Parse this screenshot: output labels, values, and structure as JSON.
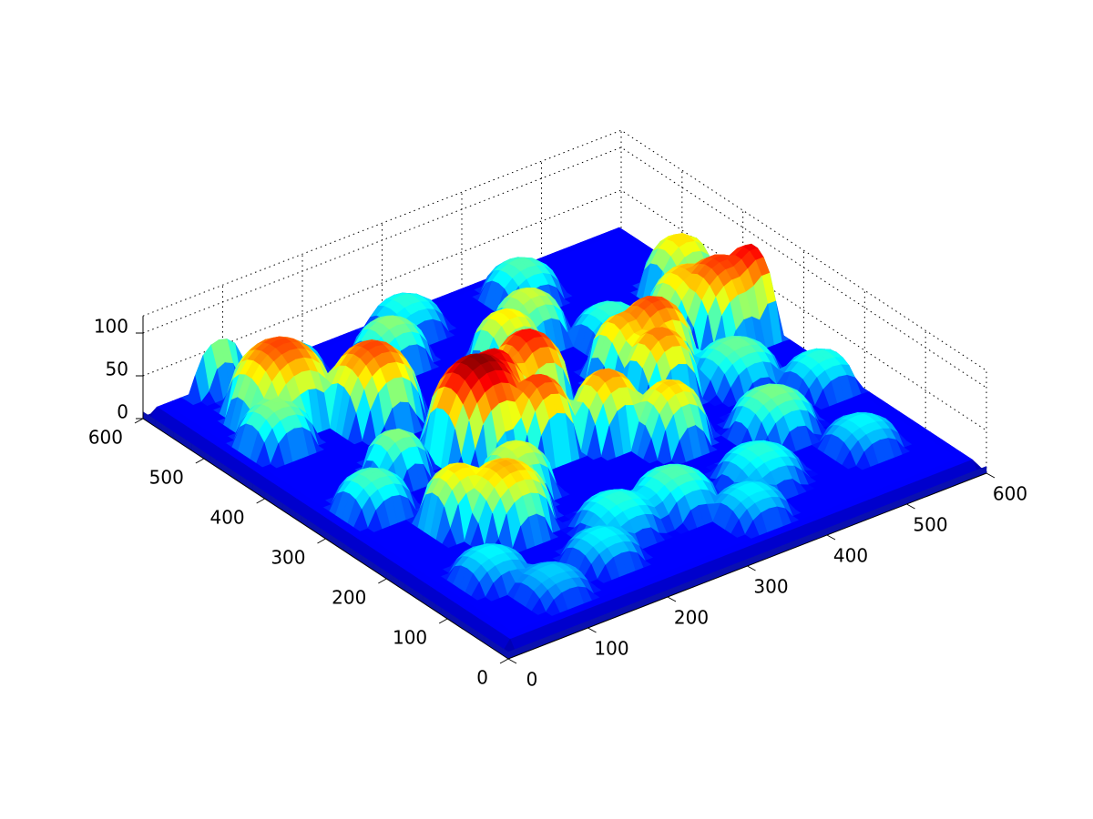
{
  "chart_data": {
    "type": "surface3d",
    "title": "",
    "xlabel": "",
    "ylabel": "",
    "zlabel": "",
    "xlim": [
      0,
      600
    ],
    "ylim": [
      0,
      600
    ],
    "zlim": [
      0,
      120
    ],
    "grid": true,
    "colormap": [
      "#00008f",
      "#0000ff",
      "#0080ff",
      "#00ffff",
      "#80ff80",
      "#ffff00",
      "#ff8000",
      "#ff0000",
      "#800000"
    ],
    "x_ticks": [
      0,
      100,
      200,
      300,
      400,
      500,
      600
    ],
    "x_tick_labels": [
      "0",
      "100",
      "200",
      "300",
      "400",
      "500",
      "600"
    ],
    "y_ticks": [
      0,
      100,
      200,
      300,
      400,
      500,
      600
    ],
    "y_tick_labels": [
      "0",
      "100",
      "200",
      "300",
      "400",
      "500",
      "600"
    ],
    "z_ticks": [
      0,
      50,
      100
    ],
    "z_tick_labels": [
      "0",
      "50",
      "100"
    ],
    "base_height": 15,
    "bumps": [
      {
        "x": 215,
        "y": 330,
        "height": 120,
        "radius": 55
      },
      {
        "x": 245,
        "y": 345,
        "height": 110,
        "radius": 40
      },
      {
        "x": 300,
        "y": 360,
        "height": 105,
        "radius": 45
      },
      {
        "x": 260,
        "y": 290,
        "height": 100,
        "radius": 40
      },
      {
        "x": 330,
        "y": 270,
        "height": 90,
        "radius": 40
      },
      {
        "x": 170,
        "y": 445,
        "height": 98,
        "radius": 50
      },
      {
        "x": 100,
        "y": 505,
        "height": 98,
        "radius": 55
      },
      {
        "x": 80,
        "y": 610,
        "height": 92,
        "radius": 45
      },
      {
        "x": 575,
        "y": 355,
        "height": 108,
        "radius": 40
      },
      {
        "x": 545,
        "y": 365,
        "height": 100,
        "radius": 50
      },
      {
        "x": 525,
        "y": 390,
        "height": 85,
        "radius": 45
      },
      {
        "x": 445,
        "y": 345,
        "height": 98,
        "radius": 45
      },
      {
        "x": 420,
        "y": 300,
        "height": 92,
        "radius": 40
      },
      {
        "x": 415,
        "y": 350,
        "height": 88,
        "radius": 40
      },
      {
        "x": 375,
        "y": 225,
        "height": 82,
        "radius": 40
      },
      {
        "x": 145,
        "y": 195,
        "height": 85,
        "radius": 50
      },
      {
        "x": 110,
        "y": 225,
        "height": 80,
        "radius": 40
      },
      {
        "x": 190,
        "y": 235,
        "height": 72,
        "radius": 40
      },
      {
        "x": 335,
        "y": 440,
        "height": 78,
        "radius": 40
      },
      {
        "x": 560,
        "y": 450,
        "height": 80,
        "radius": 40
      },
      {
        "x": 120,
        "y": 340,
        "height": 62,
        "radius": 35
      },
      {
        "x": 60,
        "y": 460,
        "height": 62,
        "radius": 40
      },
      {
        "x": 385,
        "y": 470,
        "height": 70,
        "radius": 40
      },
      {
        "x": 300,
        "y": 120,
        "height": 55,
        "radius": 45
      },
      {
        "x": 470,
        "y": 180,
        "height": 60,
        "radius": 45
      },
      {
        "x": 230,
        "y": 120,
        "height": 50,
        "radius": 45
      },
      {
        "x": 60,
        "y": 300,
        "height": 55,
        "radius": 40
      },
      {
        "x": 400,
        "y": 110,
        "height": 50,
        "radius": 45
      },
      {
        "x": 500,
        "y": 280,
        "height": 58,
        "radius": 45
      },
      {
        "x": 250,
        "y": 520,
        "height": 62,
        "radius": 40
      },
      {
        "x": 430,
        "y": 540,
        "height": 55,
        "radius": 40
      },
      {
        "x": 180,
        "y": 80,
        "height": 45,
        "radius": 40
      },
      {
        "x": 350,
        "y": 60,
        "height": 45,
        "radius": 40
      },
      {
        "x": 520,
        "y": 100,
        "height": 45,
        "radius": 40
      },
      {
        "x": 70,
        "y": 120,
        "height": 45,
        "radius": 40
      },
      {
        "x": 300,
        "y": 560,
        "height": 50,
        "radius": 40
      },
      {
        "x": 450,
        "y": 420,
        "height": 52,
        "radius": 40
      },
      {
        "x": 100,
        "y": 60,
        "height": 40,
        "radius": 40
      },
      {
        "x": 150,
        "y": 560,
        "height": 50,
        "radius": 40
      },
      {
        "x": 560,
        "y": 220,
        "height": 50,
        "radius": 40
      }
    ]
  }
}
